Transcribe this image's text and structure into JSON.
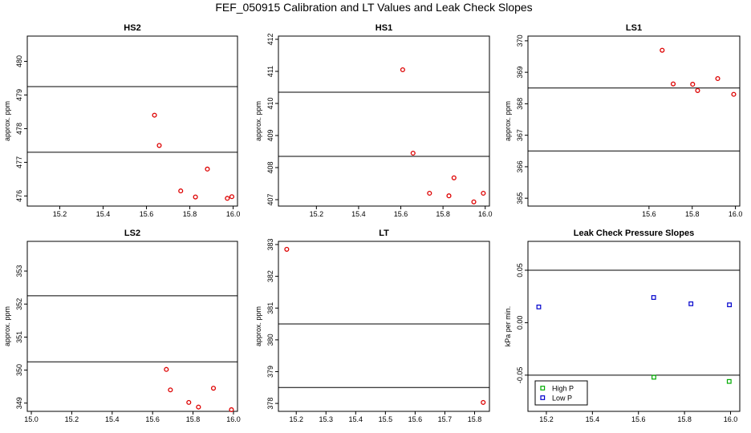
{
  "figure_title": "FEF_050915  Calibration and LT Values and Leak Check Slopes",
  "chart_data": [
    {
      "type": "scatter",
      "title": "HS2",
      "xlabel": "",
      "ylabel": "approx. ppm",
      "xlim": [
        15.05,
        16.02
      ],
      "ylim": [
        475.7,
        480.75
      ],
      "xticks": [
        "15.2",
        "15.4",
        "15.6",
        "15.8",
        "16.0"
      ],
      "yticks": [
        "476",
        "477",
        "478",
        "479",
        "480"
      ],
      "hlines": [
        479.25,
        477.3
      ],
      "series": [
        {
          "color": "#dd0000",
          "marker": "circle",
          "x": [
            15.637,
            15.659,
            15.758,
            15.826,
            15.881,
            15.973,
            15.994
          ],
          "y": [
            478.4,
            477.5,
            476.15,
            475.97,
            476.8,
            475.93,
            475.98
          ]
        }
      ]
    },
    {
      "type": "scatter",
      "title": "HS1",
      "xlabel": "",
      "ylabel": "approx. ppm",
      "xlim": [
        15.02,
        16.02
      ],
      "ylim": [
        406.8,
        412.1
      ],
      "xticks": [
        "15.2",
        "15.4",
        "15.6",
        "15.8",
        "16.0"
      ],
      "yticks": [
        "407",
        "408",
        "409",
        "410",
        "411",
        "412"
      ],
      "hlines": [
        410.35,
        408.35
      ],
      "series": [
        {
          "color": "#dd0000",
          "marker": "circle",
          "x": [
            15.609,
            15.658,
            15.736,
            15.828,
            15.852,
            15.946,
            15.991
          ],
          "y": [
            411.05,
            408.45,
            407.2,
            407.12,
            407.68,
            406.93,
            407.2
          ]
        }
      ]
    },
    {
      "type": "scatter",
      "title": "LS1",
      "xlabel": "",
      "ylabel": "approx. ppm",
      "xlim": [
        15.04,
        16.02
      ],
      "ylim": [
        364.75,
        370.15
      ],
      "xticks": [
        "15.6",
        "15.8",
        "16.0"
      ],
      "yticks": [
        "365",
        "366",
        "367",
        "368",
        "369",
        "370"
      ],
      "hlines": [
        368.5,
        366.5
      ],
      "series": [
        {
          "color": "#dd0000",
          "marker": "circle",
          "x": [
            15.661,
            15.712,
            15.802,
            15.825,
            15.918,
            15.992
          ],
          "y": [
            369.7,
            368.63,
            368.62,
            368.42,
            368.8,
            368.3
          ]
        }
      ]
    },
    {
      "type": "scatter",
      "title": "LS2",
      "xlabel": "",
      "ylabel": "approx. ppm",
      "xlim": [
        14.98,
        16.02
      ],
      "ylim": [
        348.75,
        353.9
      ],
      "xticks": [
        "15.0",
        "15.2",
        "15.4",
        "15.6",
        "15.8",
        "16.0"
      ],
      "yticks": [
        "349",
        "350",
        "351",
        "352",
        "353"
      ],
      "hlines": [
        352.25,
        350.25
      ],
      "series": [
        {
          "color": "#dd0000",
          "marker": "circle",
          "x": [
            15.668,
            15.688,
            15.779,
            15.827,
            15.901,
            15.99
          ],
          "y": [
            350.02,
            349.4,
            349.02,
            348.88,
            349.45,
            348.8
          ]
        }
      ]
    },
    {
      "type": "scatter",
      "title": "LT",
      "xlabel": "",
      "ylabel": "approx. ppm",
      "xlim": [
        15.14,
        15.85
      ],
      "ylim": [
        377.75,
        383.1
      ],
      "xticks": [
        "15.2",
        "15.3",
        "15.4",
        "15.5",
        "15.6",
        "15.7",
        "15.8"
      ],
      "yticks": [
        "378",
        "379",
        "380",
        "381",
        "382",
        "383"
      ],
      "hlines": [
        380.5,
        378.5
      ],
      "series": [
        {
          "color": "#dd0000",
          "marker": "circle",
          "x": [
            15.168,
            15.829
          ],
          "y": [
            382.85,
            378.03
          ]
        }
      ]
    },
    {
      "type": "scatter",
      "title": "Leak Check Pressure Slopes",
      "xlabel": "",
      "ylabel": "kPa per min.",
      "xlim": [
        15.12,
        16.04
      ],
      "ylim": [
        -0.0845,
        0.0775
      ],
      "xticks": [
        "15.2",
        "15.4",
        "15.6",
        "15.8",
        "16.0"
      ],
      "yticks": [
        "-0.05",
        "0.00",
        "0.05"
      ],
      "hlines": [
        0.05,
        -0.05
      ],
      "legend": {
        "position": "bottom-left",
        "entries": [
          "High P",
          "Low P"
        ]
      },
      "series": [
        {
          "name": "High P",
          "color": "#00aa00",
          "marker": "square",
          "x": [
            15.667,
            15.994
          ],
          "y": [
            -0.052,
            -0.056
          ]
        },
        {
          "name": "Low P",
          "color": "#0000cc",
          "marker": "square",
          "x": [
            15.167,
            15.666,
            15.828,
            15.995
          ],
          "y": [
            0.015,
            0.024,
            0.018,
            0.017
          ]
        }
      ]
    }
  ]
}
